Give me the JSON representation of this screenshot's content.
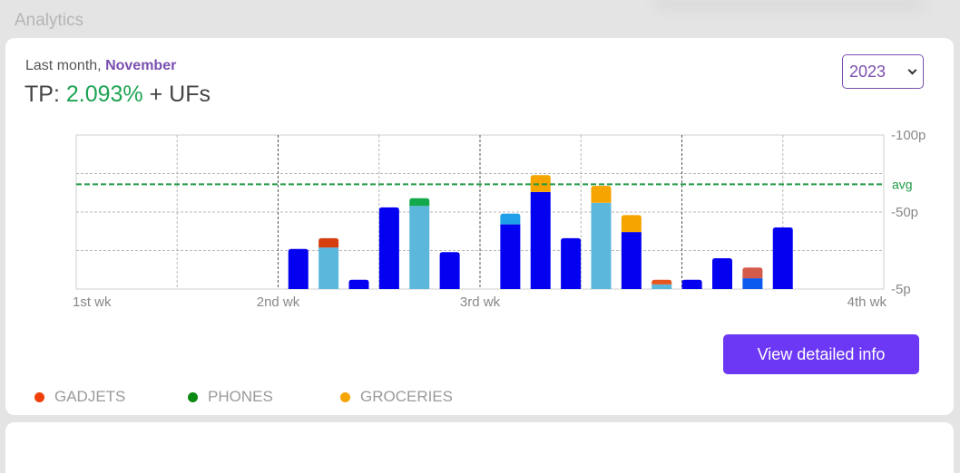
{
  "page": {
    "title": "Analytics"
  },
  "summary": {
    "prefix": "Last month,",
    "month": "November",
    "tp_label": "TP:",
    "tp_value": "2.093%",
    "suffix": "+ UFs"
  },
  "year_select": {
    "value": "2023"
  },
  "button": {
    "label": "View detailed info"
  },
  "legend": [
    {
      "label": "GADJETS",
      "color": "#f0400a"
    },
    {
      "label": "PHONES",
      "color": "#0a8a12"
    },
    {
      "label": "GROCERIES",
      "color": "#f5a400"
    }
  ],
  "chart_data": {
    "type": "bar",
    "stacked": true,
    "title": "",
    "xlabel": "",
    "ylabel": "",
    "x_ticks": [
      "1st wk",
      "2nd wk",
      "3rd wk",
      "4th wk"
    ],
    "y_ticks": [
      "-100p",
      "-50p",
      "-5p"
    ],
    "ylim": [
      0,
      100
    ],
    "avg": {
      "label": "avg",
      "value": 68,
      "color": "#1e9a46"
    },
    "grid": true,
    "bars": [
      {
        "position": 2.2,
        "segments": [
          {
            "value": 26,
            "color": "#0400f0"
          }
        ]
      },
      {
        "position": 2.5,
        "segments": [
          {
            "value": 27,
            "color": "#5bb8dc"
          },
          {
            "value": 6,
            "color": "#d63e10"
          }
        ]
      },
      {
        "position": 2.8,
        "segments": [
          {
            "value": 6,
            "color": "#0400f0"
          }
        ]
      },
      {
        "position": 3.1,
        "segments": [
          {
            "value": 53,
            "color": "#0400f0"
          }
        ]
      },
      {
        "position": 3.4,
        "segments": [
          {
            "value": 54,
            "color": "#5bb8dc"
          },
          {
            "value": 5,
            "color": "#13a84a"
          }
        ]
      },
      {
        "position": 3.7,
        "segments": [
          {
            "value": 24,
            "color": "#0400f0"
          }
        ]
      },
      {
        "position": 4.3,
        "segments": [
          {
            "value": 42,
            "color": "#0400f0"
          },
          {
            "value": 7,
            "color": "#1e9fe8"
          }
        ]
      },
      {
        "position": 4.6,
        "segments": [
          {
            "value": 63,
            "color": "#0400f0"
          },
          {
            "value": 11,
            "color": "#f5a400"
          }
        ]
      },
      {
        "position": 4.9,
        "segments": [
          {
            "value": 33,
            "color": "#0400f0"
          }
        ]
      },
      {
        "position": 5.2,
        "segments": [
          {
            "value": 56,
            "color": "#5bb8dc"
          },
          {
            "value": 11,
            "color": "#f5a400"
          }
        ]
      },
      {
        "position": 5.5,
        "segments": [
          {
            "value": 37,
            "color": "#0400f0"
          },
          {
            "value": 11,
            "color": "#f5a400"
          }
        ]
      },
      {
        "position": 5.8,
        "segments": [
          {
            "value": 3,
            "color": "#5bb8dc"
          },
          {
            "value": 3,
            "color": "#e8561f"
          }
        ]
      },
      {
        "position": 6.1,
        "segments": [
          {
            "value": 6,
            "color": "#0400f0"
          }
        ]
      },
      {
        "position": 6.4,
        "segments": [
          {
            "value": 20,
            "color": "#0400f0"
          }
        ]
      },
      {
        "position": 6.7,
        "segments": [
          {
            "value": 7,
            "color": "#0a5af0"
          },
          {
            "value": 7,
            "color": "#d45a4a"
          }
        ]
      },
      {
        "position": 7.0,
        "segments": [
          {
            "value": 40,
            "color": "#0400f0"
          }
        ]
      }
    ]
  }
}
